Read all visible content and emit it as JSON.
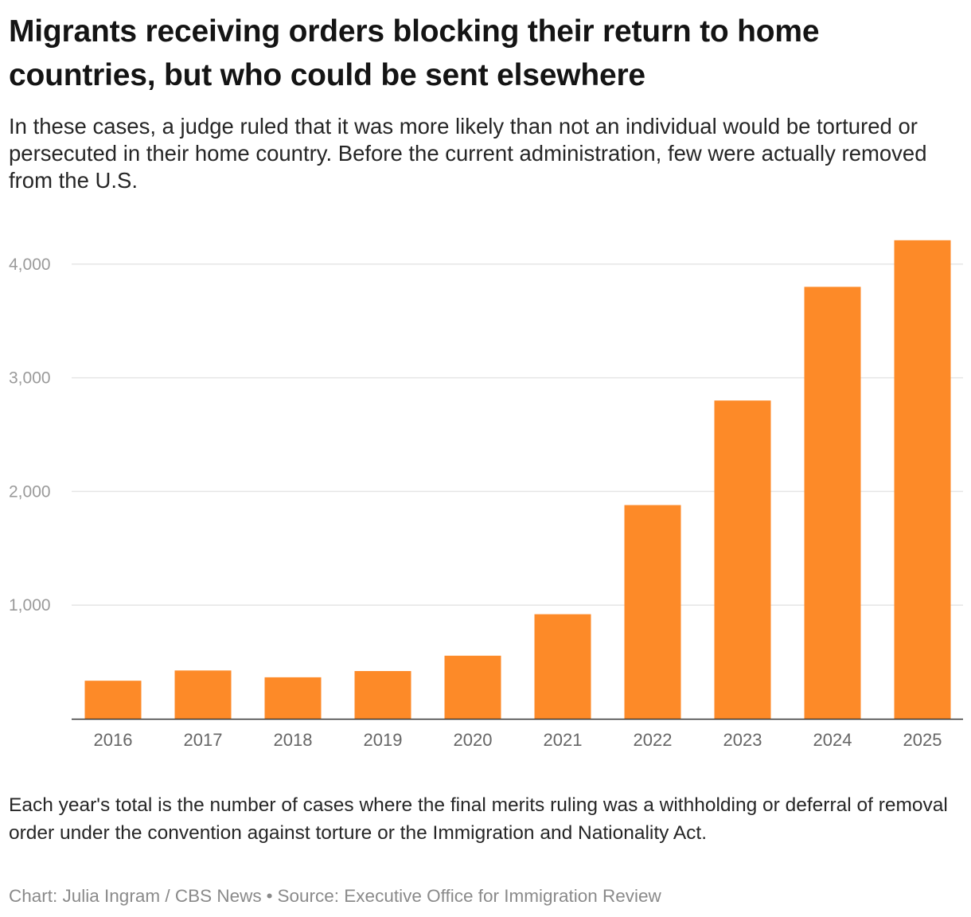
{
  "header": {
    "title": "Migrants receiving orders blocking their return to home countries, but who could be sent elsewhere",
    "subtitle": "In these cases, a judge ruled that it was more likely than not an individual would be tortured or persecuted in their home country. Before the current administration, few were actually removed from the U.S."
  },
  "footer": {
    "note": "Each year's total is the number of cases where the final merits ruling was a withholding or deferral of removal order under the convention against torture or the Immigration and Nationality Act.",
    "chart_credit": "Chart: Julia Ingram / CBS News",
    "separator": "•",
    "source": "Source: Executive Office for Immigration Review"
  },
  "colors": {
    "bar": "#fd8a28",
    "gridline": "#e6e6e6",
    "axis": "#333333"
  },
  "chart_data": {
    "type": "bar",
    "categories": [
      "2016",
      "2017",
      "2018",
      "2019",
      "2020",
      "2021",
      "2022",
      "2023",
      "2024",
      "2025"
    ],
    "values": [
      335,
      425,
      365,
      420,
      555,
      920,
      1880,
      2800,
      3800,
      4210
    ],
    "title": "Migrants receiving orders blocking their return to home countries, but who could be sent elsewhere",
    "xlabel": "",
    "ylabel": "",
    "ylim": [
      0,
      4200
    ],
    "yticks": [
      1000,
      2000,
      3000,
      4000
    ],
    "ytick_labels": [
      "1,000",
      "2,000",
      "3,000",
      "4,000"
    ],
    "grid": true,
    "legend": "none"
  }
}
